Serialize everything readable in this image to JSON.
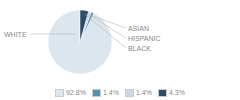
{
  "chart_data": {
    "type": "pie",
    "categories": [
      "WHITE",
      "ASIAN",
      "HISPANIC",
      "BLACK"
    ],
    "values": [
      92.8,
      1.4,
      1.4,
      4.3
    ],
    "value_labels": [
      "92.8%",
      "1.4%",
      "1.4%",
      "4.3%"
    ],
    "colors": [
      "#dce6ef",
      "#5b8fa8",
      "#c8d8e4",
      "#2e4a6b"
    ],
    "legend": "bottom"
  }
}
